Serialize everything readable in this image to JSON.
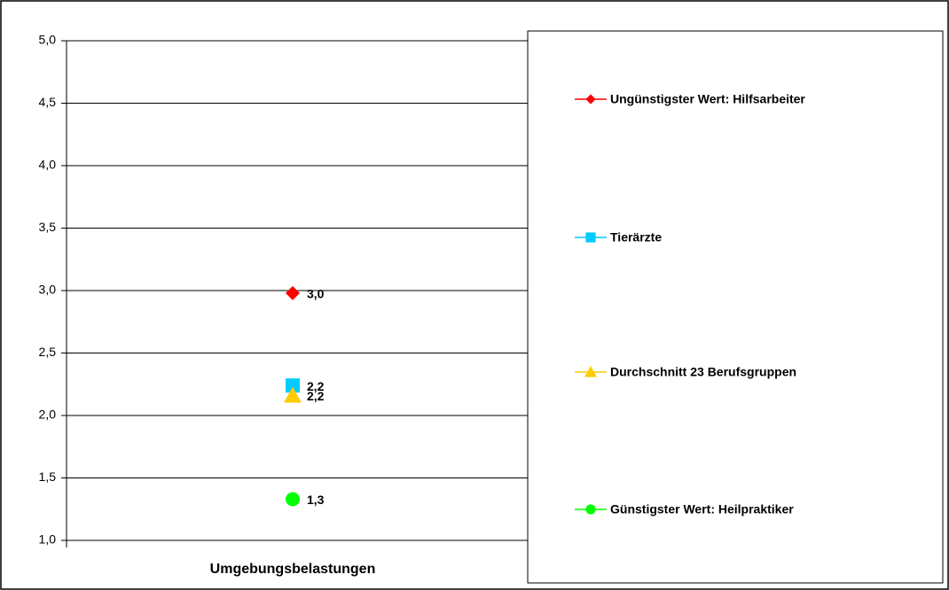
{
  "chart_data": {
    "type": "scatter",
    "categories": [
      "Umgebungsbelastungen"
    ],
    "series": [
      {
        "name": "Ungünstigster Wert: Hilfsarbeiter",
        "color": "#ff0000",
        "marker": "diamond",
        "values": [
          2.98
        ],
        "value_labels": [
          "3,0"
        ]
      },
      {
        "name": "Tierärzte",
        "color": "#00ccff",
        "marker": "square",
        "values": [
          2.24
        ],
        "value_labels": [
          "2,2"
        ]
      },
      {
        "name": "Durchschnitt 23 Berufsgruppen",
        "color": "#ffcc00",
        "marker": "triangle",
        "values": [
          2.16
        ],
        "value_labels": [
          "2,2"
        ]
      },
      {
        "name": "Günstigster Wert: Heilpraktiker",
        "color": "#00ff00",
        "marker": "circle",
        "values": [
          1.33
        ],
        "value_labels": [
          "1,3"
        ]
      }
    ],
    "ylim": [
      1,
      5
    ],
    "yticks": [
      {
        "value": 1,
        "label": "1,0"
      },
      {
        "value": 1.5,
        "label": "1,5"
      },
      {
        "value": 2,
        "label": "2,0"
      },
      {
        "value": 2.5,
        "label": "2,5"
      },
      {
        "value": 3,
        "label": "3,0"
      },
      {
        "value": 3.5,
        "label": "3,5"
      },
      {
        "value": 4,
        "label": "4,0"
      },
      {
        "value": 4.5,
        "label": "4,5"
      },
      {
        "value": 5,
        "label": "5,0"
      }
    ],
    "grid": true,
    "legend": "right"
  }
}
